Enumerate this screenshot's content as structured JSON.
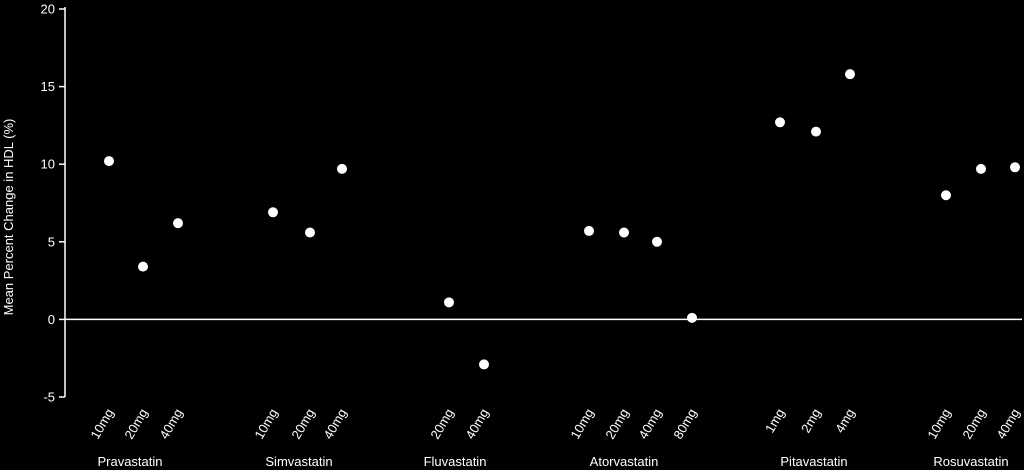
{
  "chart_data": {
    "type": "scatter",
    "ylabel": "Mean Percent Change in HDL (%)",
    "ylim": [
      -5,
      20
    ],
    "yticks": [
      -5,
      0,
      5,
      10,
      15,
      20
    ],
    "zero_line": true,
    "grid": false,
    "colors": {
      "background": "#000000",
      "foreground": "#ffffff"
    },
    "groups": [
      {
        "name": "Pravastatin",
        "points": [
          {
            "dose": "10mg",
            "value": 10.2
          },
          {
            "dose": "20mg",
            "value": 3.4
          },
          {
            "dose": "40mg",
            "value": 6.2
          }
        ]
      },
      {
        "name": "Simvastatin",
        "points": [
          {
            "dose": "10mg",
            "value": 6.9
          },
          {
            "dose": "20mg",
            "value": 5.6
          },
          {
            "dose": "40mg",
            "value": 9.7
          }
        ]
      },
      {
        "name": "Fluvastatin",
        "points": [
          {
            "dose": "20mg",
            "value": 1.1
          },
          {
            "dose": "40mg",
            "value": -2.9
          }
        ]
      },
      {
        "name": "Atorvastatin",
        "points": [
          {
            "dose": "10mg",
            "value": 5.7
          },
          {
            "dose": "20mg",
            "value": 5.6
          },
          {
            "dose": "40mg",
            "value": 5.0
          },
          {
            "dose": "80mg",
            "value": 0.1
          }
        ]
      },
      {
        "name": "Pitavastatin",
        "points": [
          {
            "dose": "1mg",
            "value": 12.7
          },
          {
            "dose": "2mg",
            "value": 12.1
          },
          {
            "dose": "4mg",
            "value": 15.8
          }
        ]
      },
      {
        "name": "Rosuvastatin",
        "points": [
          {
            "dose": "10mg",
            "value": 8.0
          },
          {
            "dose": "20mg",
            "value": 9.7
          },
          {
            "dose": "40mg",
            "value": 9.8
          }
        ]
      }
    ]
  }
}
